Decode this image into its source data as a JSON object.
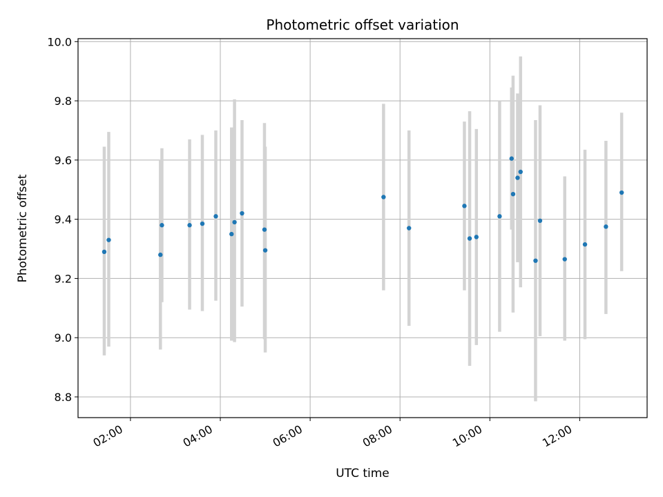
{
  "chart_data": {
    "type": "scatter",
    "title": "Photometric offset variation",
    "xlabel": "UTC time",
    "ylabel": "Photometric offset",
    "xlim": [
      "00:50",
      "13:30"
    ],
    "ylim": [
      8.73,
      10.01
    ],
    "grid": true,
    "x_ticks": [
      "02:00",
      "04:00",
      "06:00",
      "08:00",
      "10:00",
      "12:00"
    ],
    "y_ticks": [
      "8.8",
      "9.0",
      "9.2",
      "9.4",
      "9.6",
      "9.8",
      "10.0"
    ],
    "colors": {
      "point": "#1f77b4",
      "errorbar": "#d3d3d3",
      "grid": "#b0b0b0"
    },
    "points": [
      {
        "x": "01:25",
        "y": 9.29,
        "err_low": 8.94,
        "err_high": 9.645
      },
      {
        "x": "01:31",
        "y": 9.33,
        "err_low": 8.97,
        "err_high": 9.695
      },
      {
        "x": "02:40",
        "y": 9.28,
        "err_low": 8.96,
        "err_high": 9.6
      },
      {
        "x": "02:42",
        "y": 9.38,
        "err_low": 9.12,
        "err_high": 9.64
      },
      {
        "x": "03:19",
        "y": 9.38,
        "err_low": 9.095,
        "err_high": 9.67
      },
      {
        "x": "03:36",
        "y": 9.385,
        "err_low": 9.09,
        "err_high": 9.685
      },
      {
        "x": "03:54",
        "y": 9.41,
        "err_low": 9.125,
        "err_high": 9.7
      },
      {
        "x": "04:15",
        "y": 9.35,
        "err_low": 8.99,
        "err_high": 9.71
      },
      {
        "x": "04:19",
        "y": 9.39,
        "err_low": 8.985,
        "err_high": 9.805
      },
      {
        "x": "04:29",
        "y": 9.42,
        "err_low": 9.105,
        "err_high": 9.735
      },
      {
        "x": "04:59",
        "y": 9.365,
        "err_low": 8.995,
        "err_high": 9.725
      },
      {
        "x": "05:00",
        "y": 9.295,
        "err_low": 8.95,
        "err_high": 9.645
      },
      {
        "x": "07:38",
        "y": 9.475,
        "err_low": 9.16,
        "err_high": 9.79
      },
      {
        "x": "08:12",
        "y": 9.37,
        "err_low": 9.04,
        "err_high": 9.7
      },
      {
        "x": "09:26",
        "y": 9.445,
        "err_low": 9.16,
        "err_high": 9.73
      },
      {
        "x": "09:33",
        "y": 9.335,
        "err_low": 8.905,
        "err_high": 9.765
      },
      {
        "x": "09:42",
        "y": 9.34,
        "err_low": 8.975,
        "err_high": 9.705
      },
      {
        "x": "10:13",
        "y": 9.41,
        "err_low": 9.02,
        "err_high": 9.8
      },
      {
        "x": "10:29",
        "y": 9.605,
        "err_low": 9.365,
        "err_high": 9.845
      },
      {
        "x": "10:31",
        "y": 9.485,
        "err_low": 9.085,
        "err_high": 9.885
      },
      {
        "x": "10:37",
        "y": 9.54,
        "err_low": 9.255,
        "err_high": 9.825
      },
      {
        "x": "10:41",
        "y": 9.56,
        "err_low": 9.17,
        "err_high": 9.95
      },
      {
        "x": "11:01",
        "y": 9.26,
        "err_low": 8.785,
        "err_high": 9.735
      },
      {
        "x": "11:07",
        "y": 9.395,
        "err_low": 9.005,
        "err_high": 9.785
      },
      {
        "x": "11:40",
        "y": 9.265,
        "err_low": 8.99,
        "err_high": 9.545
      },
      {
        "x": "12:07",
        "y": 9.315,
        "err_low": 8.995,
        "err_high": 9.635
      },
      {
        "x": "12:35",
        "y": 9.375,
        "err_low": 9.08,
        "err_high": 9.665
      },
      {
        "x": "12:56",
        "y": 9.49,
        "err_low": 9.225,
        "err_high": 9.76
      }
    ]
  }
}
